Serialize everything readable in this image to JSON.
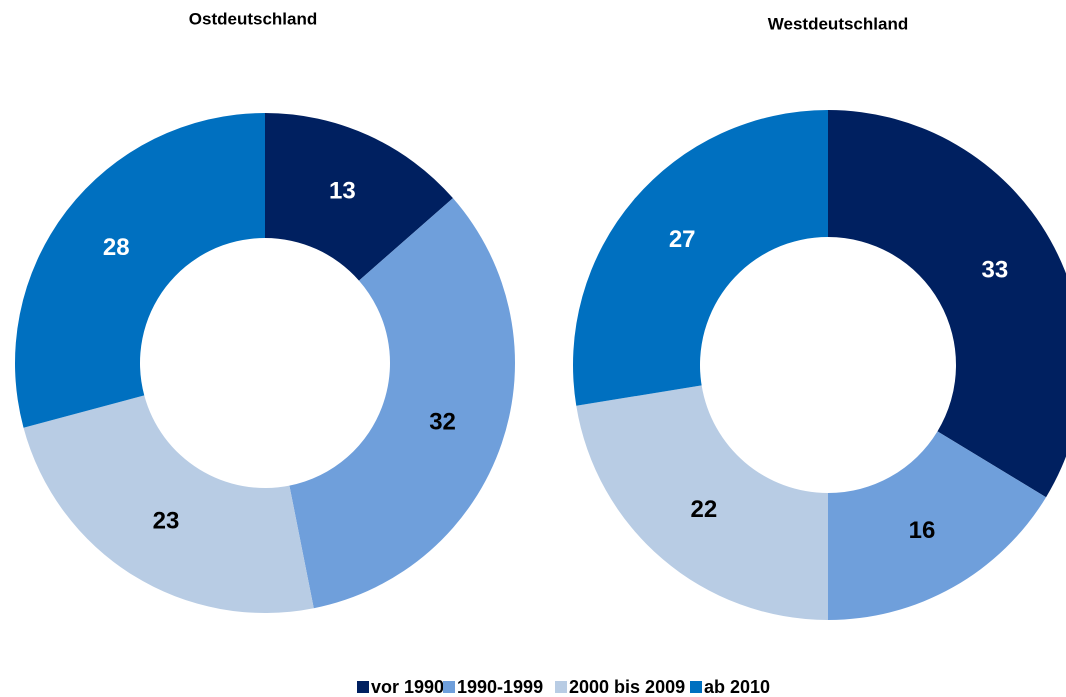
{
  "chart_data": [
    {
      "type": "donut",
      "title": "Ostdeutschland",
      "categories": [
        "vor 1990",
        "1990-1999",
        "2000 bis 2009",
        "ab 2010"
      ],
      "values": [
        13,
        32,
        23,
        28
      ],
      "colors": [
        "#002060",
        "#6f9fdb",
        "#b8cce4",
        "#0070c0"
      ],
      "legend": "bottom"
    },
    {
      "type": "donut",
      "title": "Westdeutschland",
      "categories": [
        "vor 1990",
        "1990-1999",
        "2000 bis 2009",
        "ab 2010"
      ],
      "values": [
        33,
        16,
        22,
        27
      ],
      "colors": [
        "#002060",
        "#6f9fdb",
        "#b8cce4",
        "#0070c0"
      ]
    }
  ]
}
